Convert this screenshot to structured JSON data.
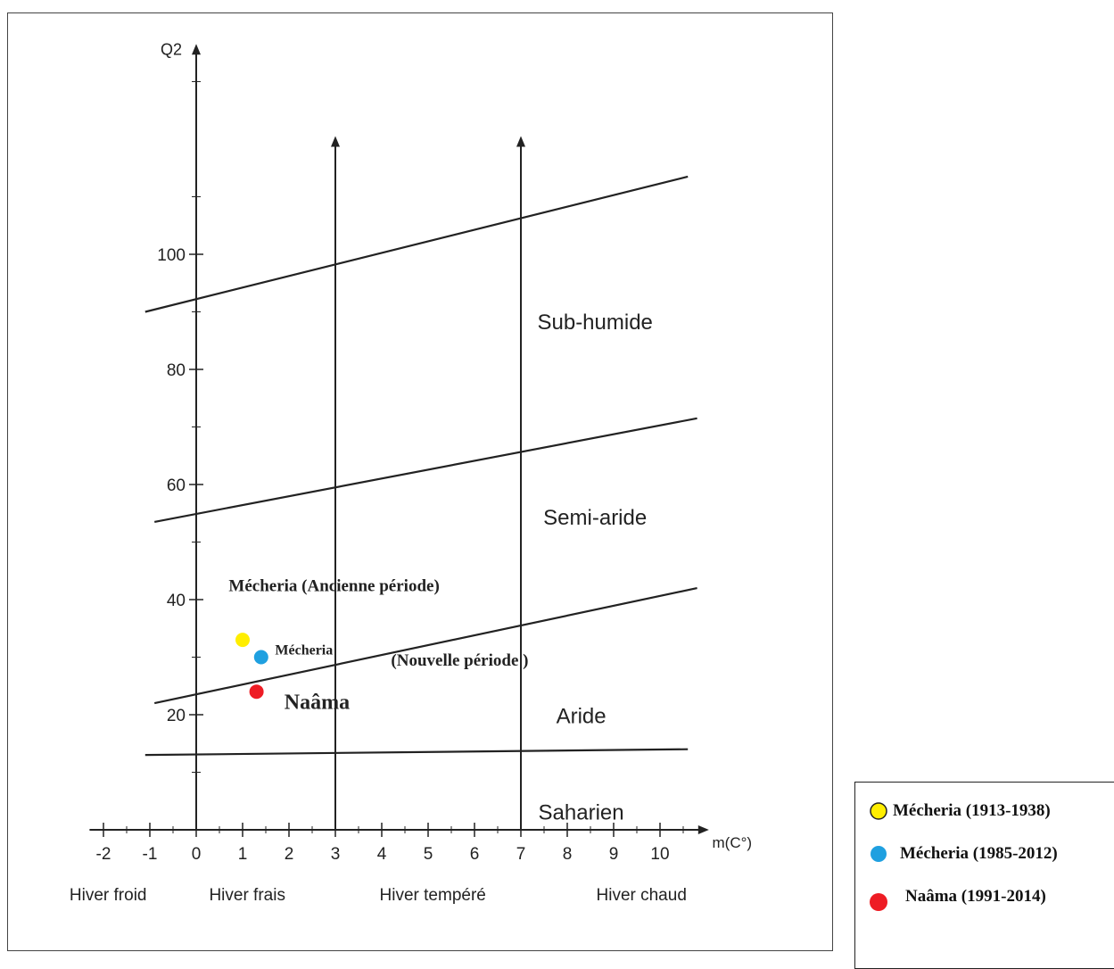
{
  "chart_data": {
    "type": "scatter",
    "ylabel": "Q2",
    "xlabel": "m(C°)",
    "xlim": [
      -2.5,
      11
    ],
    "ylim": [
      0,
      130
    ],
    "x_ticks": [
      "-2",
      "-1",
      "0",
      "1",
      "2",
      "3",
      "4",
      "5",
      "6",
      "7",
      "8",
      "9",
      "10"
    ],
    "y_ticks": [
      "20",
      "40",
      "60",
      "80",
      "100"
    ],
    "zone_labels": [
      "Sub-humide",
      "Semi-aride",
      "Aride",
      "Saharien"
    ],
    "winter_labels": [
      "Hiver froid",
      "Hiver frais",
      "Hiver tempéré",
      "Hiver chaud"
    ],
    "boundaries": [
      {
        "x": [
          -1.1,
          10.6
        ],
        "y": [
          90,
          113.5
        ]
      },
      {
        "x": [
          -0.9,
          10.8
        ],
        "y": [
          53.5,
          71.5
        ]
      },
      {
        "x": [
          -0.9,
          10.8
        ],
        "y": [
          22,
          42
        ]
      },
      {
        "x": [
          -1.1,
          10.6
        ],
        "y": [
          13,
          14
        ]
      }
    ],
    "vertical_lines": [
      3,
      7
    ],
    "series": [
      {
        "name": "Mécheria (1913-1938)",
        "color": "#ffee00",
        "x": 1.0,
        "y": 33
      },
      {
        "name": "Mécheria (1985-2012)",
        "color": "#1fa0e0",
        "x": 1.4,
        "y": 30
      },
      {
        "name": "Naâma (1991-2014)",
        "color": "#ee1c24",
        "x": 1.3,
        "y": 24
      }
    ],
    "annotations": [
      {
        "text": "Mécheria (Ancienne période)"
      },
      {
        "text": "Mécheria",
        "suffix": "(Nouvelle période )"
      },
      {
        "text": "Naâma"
      }
    ]
  }
}
